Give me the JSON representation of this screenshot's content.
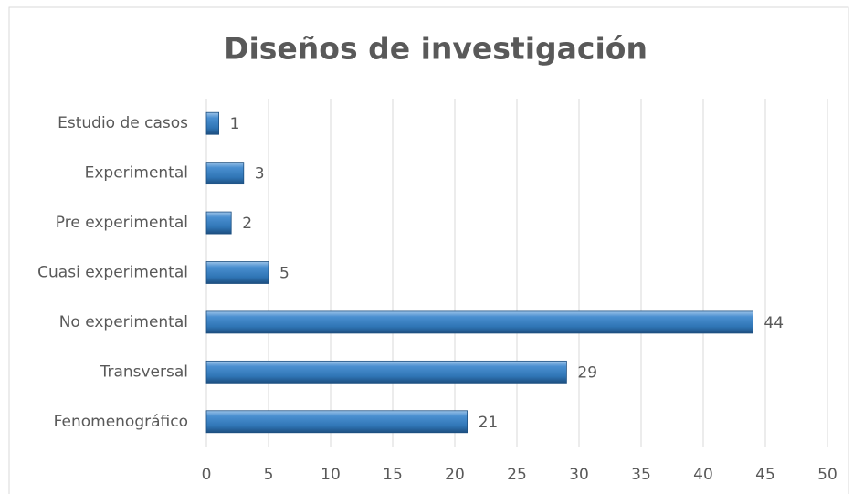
{
  "chart_data": {
    "type": "bar",
    "orientation": "horizontal",
    "title": "Diseños de investigación",
    "categories": [
      "Estudio de casos",
      "Experimental",
      "Pre experimental",
      "Cuasi experimental",
      "No experimental",
      "Transversal",
      "Fenomenográfico"
    ],
    "values": [
      1,
      3,
      2,
      5,
      44,
      29,
      21
    ],
    "color": "#2f75b5",
    "xlim": [
      0,
      50
    ],
    "xticks": [
      0,
      5,
      10,
      15,
      20,
      25,
      30,
      35,
      40,
      45,
      50
    ],
    "grid": true,
    "data_labels": true
  }
}
